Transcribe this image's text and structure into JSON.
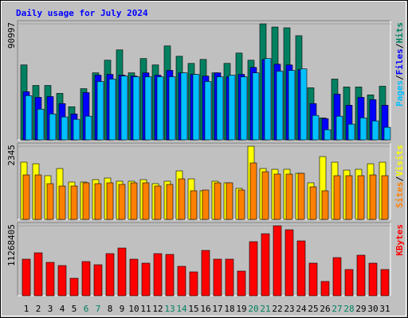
{
  "title": "Daily usage for July 2024",
  "legend_separator": "/",
  "chart_data": [
    {
      "type": "bar",
      "ylim": [
        0,
        90997
      ],
      "yticks": [
        90997
      ],
      "series": [
        {
          "name": "Hits",
          "color": "#008060",
          "values": [
            58800,
            42700,
            42700,
            36500,
            26000,
            40200,
            52600,
            62500,
            70600,
            52600,
            63800,
            58800,
            73700,
            65600,
            60000,
            63100,
            52600,
            60000,
            68100,
            62500,
            90997,
            88500,
            87900,
            81700,
            40900,
            17300,
            47700,
            41500,
            41500,
            35300,
            42100
          ]
        },
        {
          "name": "Files",
          "color": "#0000ff",
          "values": [
            37800,
            33400,
            34000,
            28500,
            20400,
            37100,
            50800,
            51400,
            50800,
            50100,
            52600,
            50800,
            54500,
            52600,
            51400,
            50100,
            52600,
            49500,
            51400,
            56900,
            63100,
            59400,
            58800,
            55100,
            28500,
            16700,
            35900,
            27200,
            33400,
            31600,
            27200
          ]
        },
        {
          "name": "Pages",
          "color": "#00c0ff",
          "values": [
            34700,
            24100,
            20400,
            18000,
            16100,
            18600,
            45800,
            47700,
            50100,
            49500,
            49500,
            49500,
            49500,
            52600,
            51400,
            45800,
            49500,
            50800,
            49500,
            52600,
            63800,
            53900,
            54500,
            55700,
            19200,
            8000,
            18600,
            12400,
            17300,
            14900,
            9900
          ]
        }
      ]
    },
    {
      "type": "bar",
      "ylim": [
        0,
        2345
      ],
      "yticks": [
        2345
      ],
      "series": [
        {
          "name": "Visits",
          "color": "#ffff00",
          "values": [
            1835,
            1784,
            1402,
            1631,
            1198,
            1198,
            1275,
            1326,
            1224,
            1224,
            1275,
            1147,
            1224,
            1555,
            1300,
            918,
            1224,
            1173,
            994,
            2345,
            1631,
            1606,
            1606,
            1478,
            1173,
            2014,
            1835,
            1580,
            1606,
            1784,
            1835
          ]
        },
        {
          "name": "Sites",
          "color": "#ff8000",
          "values": [
            1427,
            1427,
            1147,
            1071,
            1071,
            1173,
            1147,
            1173,
            1122,
            1173,
            1173,
            1071,
            1122,
            1300,
            918,
            943,
            1173,
            1173,
            943,
            1810,
            1529,
            1453,
            1453,
            1478,
            1045,
            918,
            1402,
            1402,
            1402,
            1427,
            1402
          ]
        }
      ]
    },
    {
      "type": "bar",
      "ylim": [
        0,
        11268405
      ],
      "yticks": [
        11268405
      ],
      "categories": [
        "1",
        "2",
        "3",
        "4",
        "5",
        "6",
        "7",
        "8",
        "9",
        "10",
        "11",
        "12",
        "13",
        "14",
        "15",
        "16",
        "17",
        "18",
        "19",
        "20",
        "21",
        "22",
        "23",
        "24",
        "25",
        "26",
        "27",
        "28",
        "29",
        "30",
        "31"
      ],
      "category_colors": [
        "#000000",
        "#000000",
        "#000000",
        "#000000",
        "#000000",
        "#008060",
        "#008060",
        "#000000",
        "#000000",
        "#000000",
        "#000000",
        "#000000",
        "#008060",
        "#008060",
        "#000000",
        "#000000",
        "#000000",
        "#000000",
        "#000000",
        "#008060",
        "#008060",
        "#000000",
        "#000000",
        "#000000",
        "#000000",
        "#000000",
        "#008060",
        "#008060",
        "#000000",
        "#000000",
        "#000000"
      ],
      "series": [
        {
          "name": "KBytes",
          "color": "#ff0000",
          "values": [
            5890000,
            6915000,
            5378000,
            4866000,
            2817000,
            5506000,
            4994000,
            6787000,
            7683000,
            5890000,
            5250000,
            6787000,
            6659000,
            4738000,
            3842000,
            7299000,
            5890000,
            5890000,
            3970000,
            8707000,
            9988000,
            11268405,
            10628000,
            8835000,
            5250000,
            2305000,
            6146000,
            4226000,
            6531000,
            5250000,
            4226000
          ]
        }
      ]
    }
  ]
}
